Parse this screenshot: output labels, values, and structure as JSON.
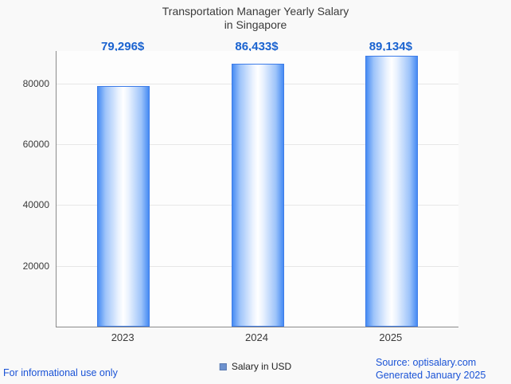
{
  "title": {
    "line1": "Transportation Manager Yearly Salary",
    "line2": "in Singapore"
  },
  "chart_data": {
    "type": "bar",
    "title": "Transportation Manager Yearly Salary in Singapore",
    "categories": [
      "2023",
      "2024",
      "2025"
    ],
    "values": [
      79296,
      86433,
      89134
    ],
    "value_labels": [
      "79,296$",
      "86,433$",
      "89,134$"
    ],
    "xlabel": "",
    "ylabel": "",
    "ylim": [
      0,
      90750
    ],
    "yticks": [
      20000,
      40000,
      60000,
      80000
    ],
    "grid": true,
    "legend_entries": [
      "Salary in USD"
    ],
    "legend_position": "bottom",
    "colors": {
      "bar_edge": "#3d7ce8",
      "bar_fill_outer": "#478cf3",
      "bar_fill_center": "#ffffff",
      "value_label": "#1a63d0",
      "axis_text": "#3a3a3a",
      "footer_link": "#1a53d6",
      "background": "#f9f9f9"
    }
  },
  "legend": {
    "label": "Salary in USD",
    "swatch_color": "#6d92cf"
  },
  "footer": {
    "left": "For informational use only",
    "right_line1": "Source: optisalary.com",
    "right_line2": "Generated January 2025"
  }
}
